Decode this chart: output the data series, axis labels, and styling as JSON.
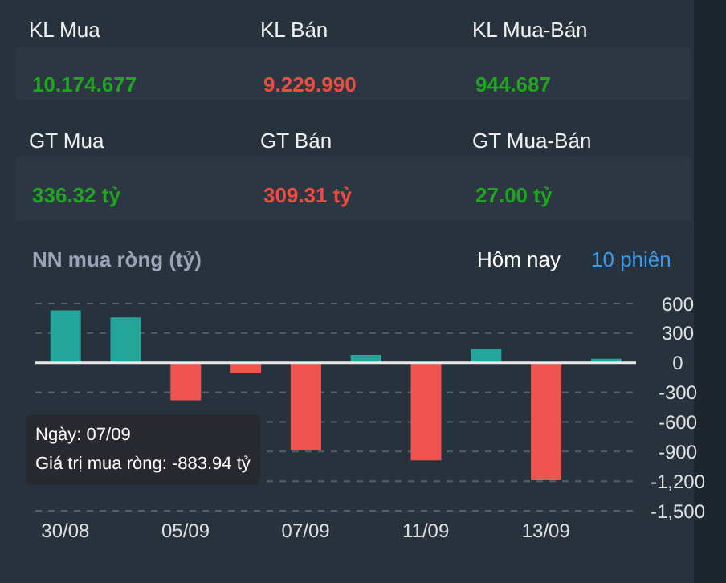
{
  "chart_data": [
    {
      "type": "other",
      "annotations": [
        "KL Mua",
        "KL Bán",
        "KL Mua-Bán",
        "10.174.677",
        "9.229.990",
        "944.687",
        "GT Mua",
        "GT Bán",
        "GT Mua-Bán",
        "336.32 tỷ",
        "309.31 tỷ",
        "27.00 tỷ"
      ]
    },
    {
      "type": "bar",
      "title": "NN mua ròng (tỷ)",
      "categories": [
        "30/08",
        null,
        "05/09",
        null,
        "07/09",
        null,
        "11/09",
        null,
        "13/09",
        null
      ],
      "values": [
        530,
        460,
        -380,
        -100,
        -883.94,
        80,
        -990,
        140,
        -1190,
        40
      ],
      "colors": [
        "#26a69a",
        "#26a69a",
        "#ef5350",
        "#ef5350",
        "#ef5350",
        "#26a69a",
        "#ef5350",
        "#26a69a",
        "#ef5350",
        "#26a69a"
      ],
      "ylim": [
        -1500,
        600
      ],
      "yticks": [
        600,
        300,
        0,
        -300,
        -600,
        -900,
        {
          "value": -1200,
          "label": "-1,200"
        },
        {
          "value": -1500,
          "label": "-1,500"
        }
      ],
      "grid": "y",
      "legend": false,
      "ref_lines": [
        {
          "axis": "y",
          "value": 0,
          "color": "#e8e8e8"
        }
      ],
      "annotations": [
        "Hôm nay",
        "10 phiên",
        "Ngày: 07/09",
        "Giá trị mua ròng: -883.94 tỷ"
      ]
    }
  ]
}
